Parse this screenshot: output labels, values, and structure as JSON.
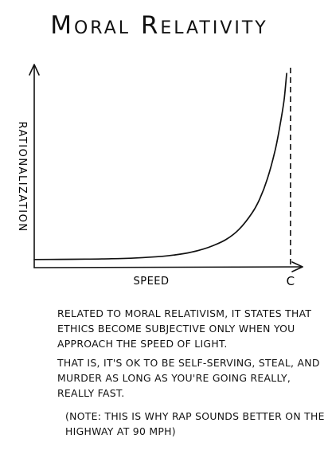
{
  "chart_data": {
    "type": "line",
    "title": "Moral Relativity",
    "xlabel": "Speed",
    "ylabel": "Rationalization",
    "x_tick_labels": [
      {
        "label": "c",
        "x": 1.0
      }
    ],
    "xlim": [
      0,
      1.05
    ],
    "ylim": [
      0,
      1.0
    ],
    "asymptote": {
      "x": 1.0,
      "style": "dashed",
      "label": "c"
    },
    "series": [
      {
        "x": [
          0.0,
          0.1,
          0.2,
          0.3,
          0.4,
          0.5,
          0.55,
          0.6,
          0.65,
          0.7,
          0.75,
          0.8,
          0.85,
          0.88,
          0.91,
          0.94,
          0.96,
          0.975,
          0.985
        ],
        "y": [
          0.04,
          0.041,
          0.042,
          0.044,
          0.048,
          0.056,
          0.063,
          0.073,
          0.088,
          0.11,
          0.14,
          0.19,
          0.27,
          0.34,
          0.44,
          0.58,
          0.71,
          0.83,
          0.96
        ]
      }
    ],
    "grid": false,
    "legend": "none"
  },
  "caption": {
    "paragraph1": "Related to moral relativism, it states that ethics become subjective only when you approach the speed of light.",
    "paragraph2": "That is, it's ok to be self-serving, steal, and murder as long as you're going really, really fast.",
    "paragraph3": "(Note: this is why rap sounds better on the highway at 90 mph)"
  }
}
